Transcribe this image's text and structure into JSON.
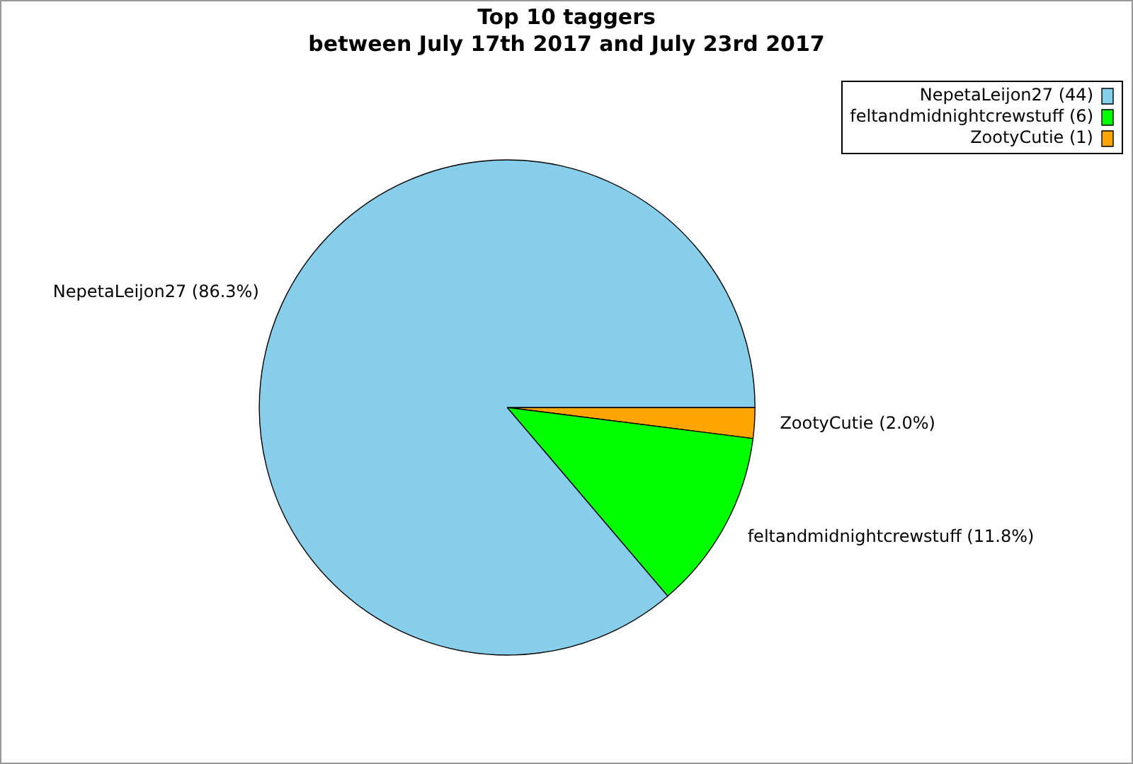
{
  "chart_data": {
    "type": "pie",
    "title": "Top 10 taggers",
    "subtitle": "between July 17th 2017 and July 23rd 2017",
    "categories": [
      "NepetaLeijon27 (44)",
      "feltandmidnightcrewstuff (6)",
      "ZootyCutie (1)"
    ],
    "values": [
      86.3,
      11.8,
      2.0
    ],
    "colors": [
      "#87ceeb",
      "#00ff00",
      "#ffa500"
    ],
    "value_labels": [
      "NepetaLeijon27 (86.3%)",
      "feltandmidnightcrewstuff (11.8%)",
      "ZootyCutie (2.0%)"
    ],
    "legend": "top right"
  }
}
